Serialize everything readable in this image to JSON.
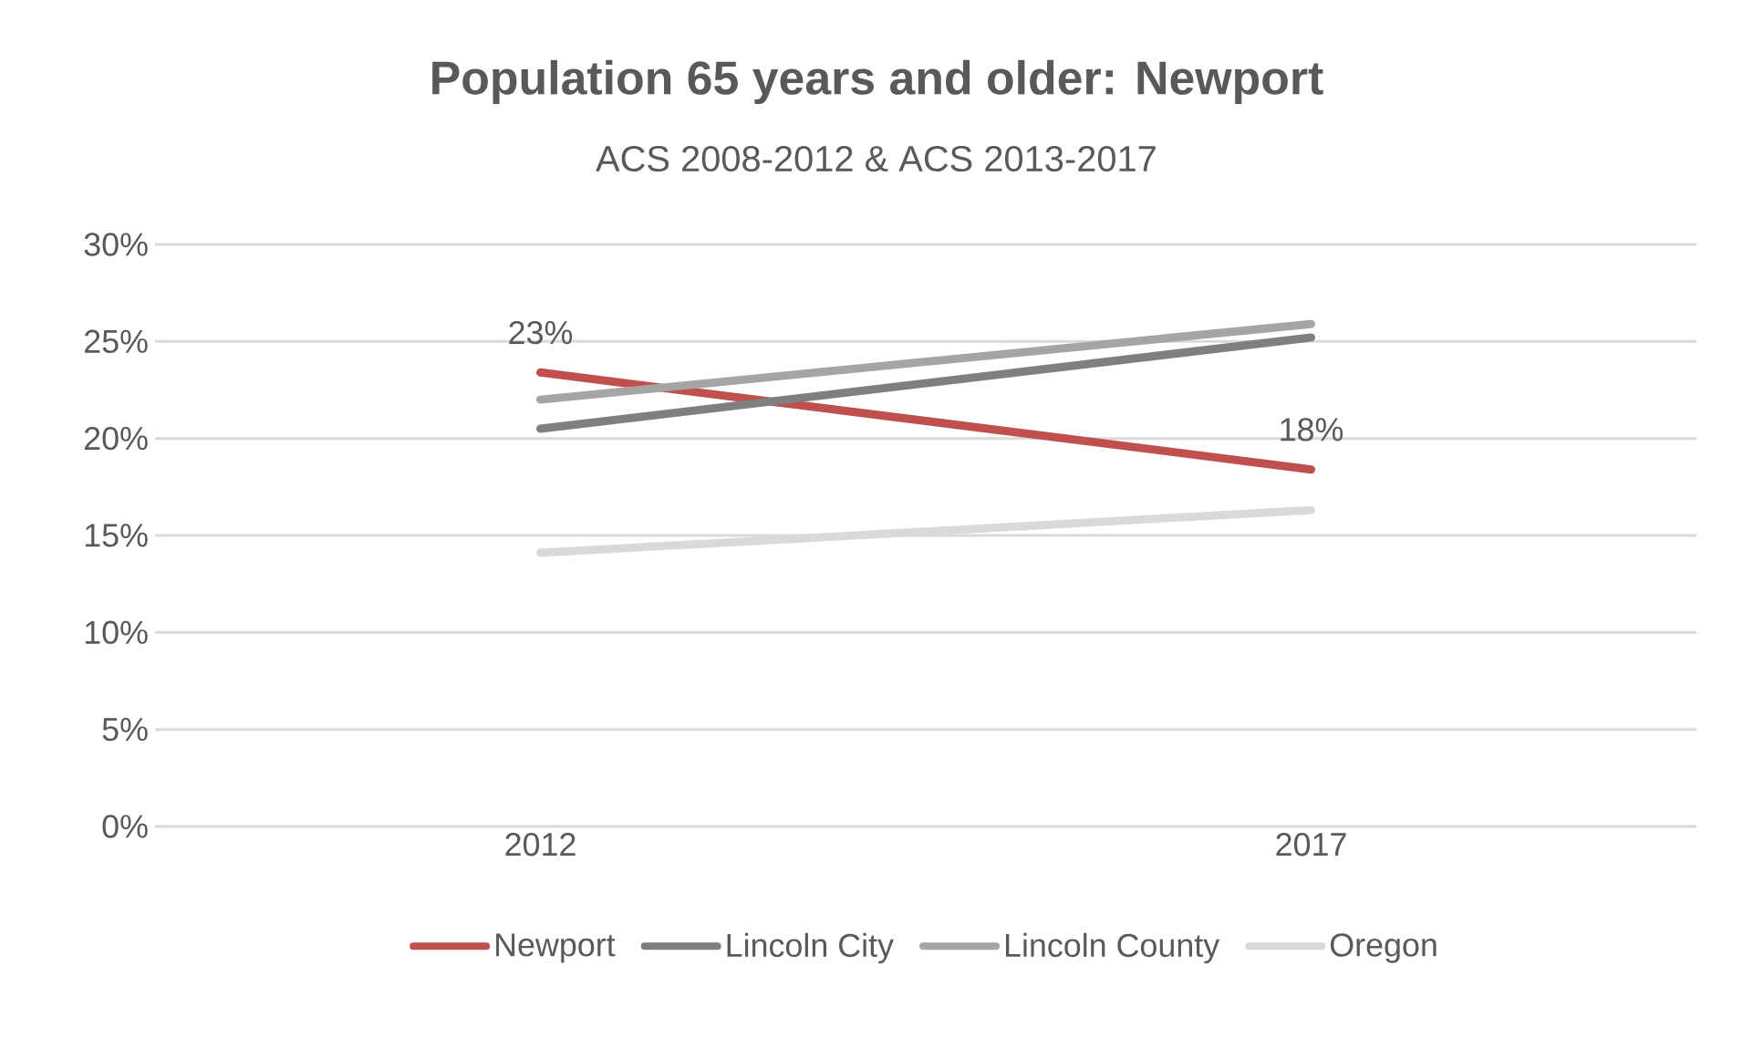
{
  "chart_data": {
    "type": "line",
    "title": "Population 65 years and older: Newport",
    "subtitle": "ACS 2008-2012 & ACS 2013-2017",
    "categories": [
      "2012",
      "2017"
    ],
    "series": [
      {
        "name": "Newport",
        "color": "#c0504d",
        "values": [
          23.4,
          18.4
        ],
        "value_labels": [
          "23%",
          "18%"
        ]
      },
      {
        "name": "Lincoln City",
        "color": "#7f7f7f",
        "values": [
          20.5,
          25.2
        ]
      },
      {
        "name": "Lincoln County",
        "color": "#a5a5a5",
        "values": [
          22.0,
          25.9
        ]
      },
      {
        "name": "Oregon",
        "color": "#d9d9d9",
        "values": [
          14.1,
          16.3
        ]
      }
    ],
    "ylim": [
      0,
      30
    ],
    "yticks": [
      {
        "value": 0,
        "label": "0%"
      },
      {
        "value": 5,
        "label": "5%"
      },
      {
        "value": 10,
        "label": "10%"
      },
      {
        "value": 15,
        "label": "15%"
      },
      {
        "value": 20,
        "label": "20%"
      },
      {
        "value": 25,
        "label": "25%"
      },
      {
        "value": 30,
        "label": "30%"
      }
    ],
    "grid": "y",
    "legend": "bottom"
  }
}
